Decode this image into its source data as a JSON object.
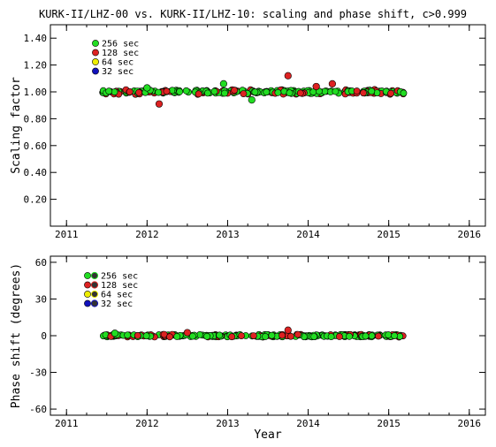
{
  "title": "KURK-II/LHZ-00 vs. KURK-II/LHZ-10: scaling and phase shift, c>0.999",
  "legend": [
    {
      "label": "256 sec",
      "color": "#22dd22"
    },
    {
      "label": "128 sec",
      "color": "#dd2222"
    },
    {
      "label": " 64 sec",
      "color": "#eeee00"
    },
    {
      "label": " 32 sec",
      "color": "#1111bb"
    }
  ],
  "chart_data": [
    {
      "type": "scatter",
      "ylabel": "Scaling factor",
      "xlabel": "",
      "xlim": [
        2010.8,
        2016.2
      ],
      "ylim": [
        0.0,
        1.5
      ],
      "xticks": [
        "2011",
        "2012",
        "2013",
        "2014",
        "2015",
        "2016"
      ],
      "yticks": [
        "0.20",
        "0.40",
        "0.60",
        "0.80",
        "1.00",
        "1.20",
        "1.40"
      ],
      "reference_line": 1.0,
      "data_range": [
        2011.45,
        2015.2
      ],
      "outliers": [
        {
          "series": "128 sec",
          "x": 2012.15,
          "y": 0.91
        },
        {
          "series": "256 sec",
          "x": 2012.95,
          "y": 1.06
        },
        {
          "series": "256 sec",
          "x": 2013.3,
          "y": 0.94
        },
        {
          "series": "128 sec",
          "x": 2013.75,
          "y": 1.12
        },
        {
          "series": "128 sec",
          "x": 2014.1,
          "y": 1.04
        },
        {
          "series": "128 sec",
          "x": 2014.3,
          "y": 1.06
        },
        {
          "series": "256 sec",
          "x": 2012.0,
          "y": 1.03
        }
      ]
    },
    {
      "type": "scatter",
      "ylabel": "Phase shift (degrees)",
      "xlabel": "Year",
      "xlim": [
        2010.8,
        2016.2
      ],
      "ylim": [
        -65,
        65
      ],
      "xticks": [
        "2011",
        "2012",
        "2013",
        "2014",
        "2015",
        "2016"
      ],
      "yticks": [
        "-60",
        "-30",
        "0",
        "30",
        "60"
      ],
      "reference_line": 0,
      "data_range": [
        2011.45,
        2015.2
      ],
      "outliers": [
        {
          "series": "128 sec",
          "x": 2013.75,
          "y": 4.5
        },
        {
          "series": "128 sec",
          "x": 2012.5,
          "y": 2.5
        },
        {
          "series": "256 sec",
          "x": 2011.6,
          "y": 2.0
        }
      ]
    }
  ]
}
